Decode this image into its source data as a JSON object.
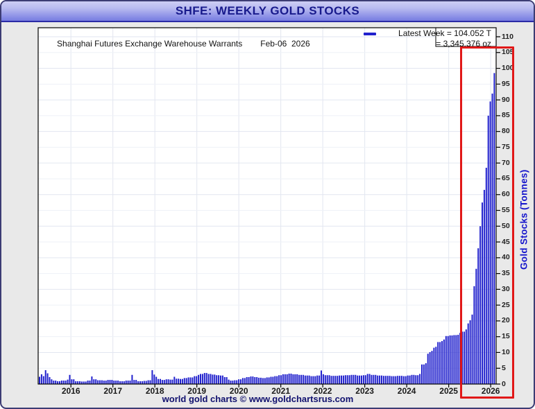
{
  "window": {
    "title": "SHFE: WEEKLY GOLD STOCKS"
  },
  "header": {
    "series_label": "Shanghai Futures Exchange Warehouse Warrants",
    "date": "Feb-06  2026"
  },
  "legend": {
    "line1": "Latest Week = 104.052 T",
    "line2": "= 3,345,376 oz"
  },
  "axes": {
    "y_title": "Gold Stocks (Tonnes)"
  },
  "footer": {
    "caption": "world gold charts © www.goldchartsrus.com"
  },
  "colors": {
    "bar": "#2121cd",
    "highlight_box": "#e11818",
    "navy_text": "#10106e",
    "y_title_blue": "#1414cc",
    "grid_minor": "#eef1f7",
    "grid_major": "#e2e6f0",
    "plot_border": "#000000",
    "figure_bg": "#e9e9e9"
  },
  "chart_data": {
    "type": "bar",
    "title": "SHFE: WEEKLY GOLD STOCKS",
    "series_name": "SHFE weekly gold warehouse warrant stocks",
    "unit": "tonnes",
    "latest": {
      "date": "Feb-06 2026",
      "tonnes": 104.052,
      "ounces": "3,345,376"
    },
    "xlabel": "",
    "ylabel": "Gold Stocks (Tonnes)",
    "x_range": [
      2015.22,
      2026.13
    ],
    "ylim": [
      0,
      110
    ],
    "grid": true,
    "legend_position": "top-right",
    "x_ticks": [
      2016,
      2017,
      2018,
      2019,
      2020,
      2021,
      2022,
      2023,
      2024,
      2025,
      2026
    ],
    "y_ticks": [
      0,
      5,
      10,
      15,
      20,
      25,
      30,
      35,
      40,
      45,
      50,
      55,
      60,
      65,
      70,
      75,
      80,
      85,
      90,
      95,
      100,
      105,
      110
    ],
    "anchors_note": "step-function anchors [year_fraction, tonnes]; value holds until next anchor; bars are weekly",
    "anchors": [
      [
        2015.22,
        2.3
      ],
      [
        2015.26,
        3.7
      ],
      [
        2015.3,
        3.1
      ],
      [
        2015.34,
        2.5
      ],
      [
        2015.38,
        4.4
      ],
      [
        2015.43,
        3.4
      ],
      [
        2015.47,
        2.2
      ],
      [
        2015.52,
        1.5
      ],
      [
        2015.58,
        1.1
      ],
      [
        2015.68,
        0.9
      ],
      [
        2015.78,
        1.1
      ],
      [
        2015.88,
        1.4
      ],
      [
        2015.93,
        3.4
      ],
      [
        2015.97,
        2.9
      ],
      [
        2016.02,
        1.5
      ],
      [
        2016.1,
        0.9
      ],
      [
        2016.25,
        0.8
      ],
      [
        2016.4,
        1.1
      ],
      [
        2016.46,
        2.4
      ],
      [
        2016.52,
        1.5
      ],
      [
        2016.62,
        1.2
      ],
      [
        2016.75,
        1.1
      ],
      [
        2016.88,
        1.3
      ],
      [
        2017.0,
        1.1
      ],
      [
        2017.15,
        0.9
      ],
      [
        2017.3,
        1.1
      ],
      [
        2017.42,
        2.9
      ],
      [
        2017.48,
        1.3
      ],
      [
        2017.6,
        0.9
      ],
      [
        2017.72,
        1.0
      ],
      [
        2017.84,
        1.2
      ],
      [
        2017.92,
        4.4
      ],
      [
        2017.96,
        3.0
      ],
      [
        2018.0,
        2.3
      ],
      [
        2018.06,
        1.6
      ],
      [
        2018.15,
        1.3
      ],
      [
        2018.25,
        1.5
      ],
      [
        2018.35,
        1.4
      ],
      [
        2018.44,
        2.3
      ],
      [
        2018.5,
        1.7
      ],
      [
        2018.6,
        1.6
      ],
      [
        2018.7,
        1.9
      ],
      [
        2018.8,
        2.1
      ],
      [
        2018.9,
        2.5
      ],
      [
        2019.0,
        2.9
      ],
      [
        2019.08,
        3.2
      ],
      [
        2019.16,
        3.5
      ],
      [
        2019.25,
        3.2
      ],
      [
        2019.35,
        3.0
      ],
      [
        2019.45,
        2.8
      ],
      [
        2019.55,
        2.7
      ],
      [
        2019.65,
        2.2
      ],
      [
        2019.72,
        1.4
      ],
      [
        2019.8,
        1.1
      ],
      [
        2019.9,
        1.2
      ],
      [
        2019.98,
        1.5
      ],
      [
        2020.06,
        1.9
      ],
      [
        2020.15,
        2.2
      ],
      [
        2020.25,
        2.4
      ],
      [
        2020.35,
        2.2
      ],
      [
        2020.45,
        2.0
      ],
      [
        2020.55,
        1.9
      ],
      [
        2020.65,
        2.1
      ],
      [
        2020.75,
        2.3
      ],
      [
        2020.85,
        2.5
      ],
      [
        2020.95,
        2.8
      ],
      [
        2021.05,
        3.1
      ],
      [
        2021.15,
        3.3
      ],
      [
        2021.25,
        3.1
      ],
      [
        2021.4,
        2.9
      ],
      [
        2021.55,
        2.7
      ],
      [
        2021.7,
        2.5
      ],
      [
        2021.85,
        2.7
      ],
      [
        2021.92,
        4.3
      ],
      [
        2021.97,
        3.1
      ],
      [
        2022.05,
        2.8
      ],
      [
        2022.2,
        2.6
      ],
      [
        2022.35,
        2.7
      ],
      [
        2022.5,
        2.8
      ],
      [
        2022.65,
        2.9
      ],
      [
        2022.8,
        2.7
      ],
      [
        2022.95,
        2.8
      ],
      [
        2023.05,
        3.2
      ],
      [
        2023.15,
        2.9
      ],
      [
        2023.3,
        2.7
      ],
      [
        2023.45,
        2.6
      ],
      [
        2023.6,
        2.5
      ],
      [
        2023.75,
        2.6
      ],
      [
        2023.9,
        2.5
      ],
      [
        2024.0,
        2.7
      ],
      [
        2024.1,
        2.9
      ],
      [
        2024.2,
        2.8
      ],
      [
        2024.3,
        3.2
      ],
      [
        2024.36,
        6.2
      ],
      [
        2024.42,
        6.6
      ],
      [
        2024.46,
        9.6
      ],
      [
        2024.52,
        10.1
      ],
      [
        2024.58,
        10.5
      ],
      [
        2024.63,
        11.5
      ],
      [
        2024.68,
        11.8
      ],
      [
        2024.74,
        13.3
      ],
      [
        2024.8,
        13.6
      ],
      [
        2024.86,
        14.1
      ],
      [
        2024.92,
        15.2
      ],
      [
        2025.0,
        15.4
      ],
      [
        2025.1,
        15.5
      ],
      [
        2025.2,
        15.6
      ],
      [
        2025.27,
        16.2
      ],
      [
        2025.32,
        16.6
      ],
      [
        2025.37,
        17.3
      ],
      [
        2025.42,
        18.2
      ],
      [
        2025.46,
        19.2
      ],
      [
        2025.5,
        20.2
      ],
      [
        2025.54,
        22.0
      ],
      [
        2025.58,
        31.0
      ],
      [
        2025.61,
        35.0
      ],
      [
        2025.64,
        36.5
      ],
      [
        2025.67,
        37.5
      ],
      [
        2025.7,
        43.0
      ],
      [
        2025.73,
        50.0
      ],
      [
        2025.76,
        53.5
      ],
      [
        2025.79,
        57.5
      ],
      [
        2025.82,
        61.5
      ],
      [
        2025.85,
        65.5
      ],
      [
        2025.88,
        68.5
      ],
      [
        2025.905,
        75.5
      ],
      [
        2025.93,
        85.0
      ],
      [
        2025.95,
        87.5
      ],
      [
        2025.97,
        89.5
      ],
      [
        2026.0,
        91.0
      ],
      [
        2026.03,
        92.0
      ],
      [
        2026.06,
        97.0
      ],
      [
        2026.08,
        98.5
      ],
      [
        2026.1,
        101.5
      ],
      [
        2026.115,
        104.052
      ]
    ],
    "highlight_region": {
      "x_start": 2025.27,
      "x_end": 2026.13,
      "note": "red box around latest surge"
    }
  }
}
